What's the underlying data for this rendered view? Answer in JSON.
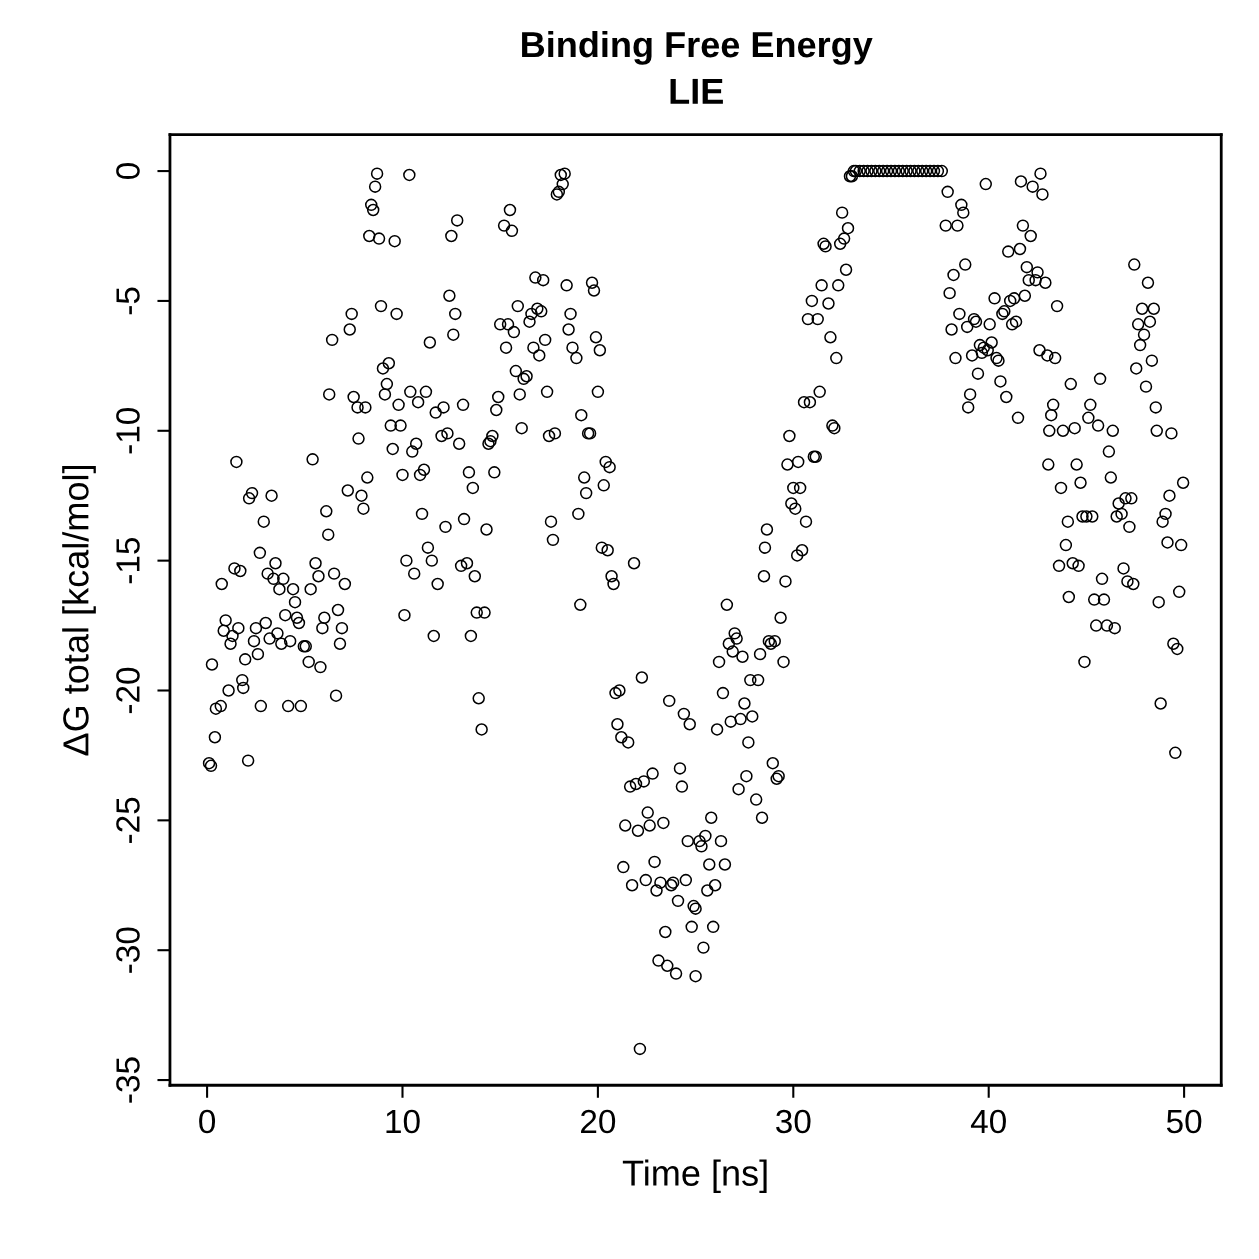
{
  "chart_data": {
    "type": "scatter",
    "title": "Binding Free Energy",
    "subtitle": "LIE",
    "xlabel": "Time [ns]",
    "ylabel": "ΔG total [kcal/mol]",
    "xlim": [
      -1.9,
      51.9
    ],
    "ylim": [
      -35.2,
      1.4
    ],
    "xticks": [
      0,
      10,
      20,
      30,
      40,
      50
    ],
    "yticks": [
      0,
      -5,
      -10,
      -15,
      -20,
      -25,
      -30,
      -35
    ],
    "marker": "circle",
    "grid": false,
    "legend": false,
    "series": [
      {
        "color": "#000000",
        "x": [
          0.1,
          0.2,
          0.25,
          0.4,
          0.45,
          0.7,
          0.75,
          0.85,
          0.95,
          1.1,
          1.2,
          1.3,
          1.4,
          1.5,
          1.6,
          1.7,
          1.8,
          1.85,
          1.95,
          2.1,
          2.15,
          2.3,
          2.4,
          2.5,
          2.6,
          2.7,
          2.75,
          2.9,
          3.0,
          3.1,
          3.2,
          3.3,
          3.4,
          3.5,
          3.6,
          3.7,
          3.8,
          3.9,
          4.0,
          4.15,
          4.25,
          4.4,
          4.5,
          4.6,
          4.7,
          4.8,
          4.95,
          5.05,
          5.2,
          5.3,
          5.4,
          5.55,
          5.7,
          5.8,
          5.9,
          6.0,
          6.1,
          6.2,
          6.25,
          6.4,
          6.5,
          6.6,
          6.7,
          6.8,
          6.9,
          7.05,
          7.2,
          7.3,
          7.4,
          7.5,
          7.7,
          7.75,
          7.9,
          8.0,
          8.1,
          8.2,
          8.3,
          8.4,
          8.5,
          8.6,
          8.7,
          8.8,
          8.9,
          9.0,
          9.1,
          9.2,
          9.3,
          9.4,
          9.5,
          9.6,
          9.7,
          9.8,
          9.9,
          10.0,
          10.1,
          10.2,
          10.35,
          10.4,
          10.5,
          10.6,
          10.7,
          10.8,
          10.9,
          11.0,
          11.1,
          11.2,
          11.3,
          11.4,
          11.5,
          11.6,
          11.7,
          11.8,
          12.0,
          12.1,
          12.2,
          12.3,
          12.4,
          12.5,
          12.6,
          12.7,
          12.8,
          12.9,
          13.0,
          13.1,
          13.15,
          13.3,
          13.4,
          13.5,
          13.6,
          13.7,
          13.8,
          13.9,
          14.05,
          14.2,
          14.3,
          14.4,
          14.5,
          14.6,
          14.7,
          14.8,
          14.9,
          15.0,
          15.2,
          15.3,
          15.4,
          15.5,
          15.6,
          15.7,
          15.8,
          15.9,
          16.0,
          16.1,
          16.2,
          16.35,
          16.5,
          16.6,
          16.7,
          16.8,
          16.9,
          17.0,
          17.1,
          17.2,
          17.3,
          17.4,
          17.5,
          17.6,
          17.7,
          17.8,
          17.9,
          18.0,
          18.1,
          18.2,
          18.3,
          18.4,
          18.5,
          18.6,
          18.7,
          18.9,
          19.0,
          19.1,
          19.15,
          19.3,
          19.4,
          19.5,
          19.6,
          19.7,
          19.8,
          19.9,
          20.0,
          20.1,
          20.2,
          20.3,
          20.4,
          20.5,
          20.6,
          20.7,
          20.8,
          20.9,
          21.0,
          21.1,
          21.2,
          21.3,
          21.4,
          21.55,
          21.65,
          21.75,
          21.85,
          21.95,
          22.05,
          22.15,
          22.25,
          22.35,
          22.45,
          22.55,
          22.65,
          22.8,
          22.9,
          23.0,
          23.1,
          23.2,
          23.35,
          23.45,
          23.55,
          23.65,
          23.75,
          23.85,
          24.0,
          24.1,
          24.2,
          24.3,
          24.4,
          24.5,
          24.6,
          24.7,
          24.8,
          24.9,
          25.0,
          25.0,
          25.2,
          25.3,
          25.4,
          25.5,
          25.6,
          25.7,
          25.8,
          25.9,
          26.0,
          26.1,
          26.2,
          26.3,
          26.4,
          26.5,
          26.6,
          26.7,
          26.8,
          26.9,
          27.0,
          27.1,
          27.2,
          27.3,
          27.4,
          27.5,
          27.6,
          27.7,
          27.8,
          27.9,
          28.1,
          28.2,
          28.3,
          28.4,
          28.5,
          28.55,
          28.65,
          28.75,
          28.85,
          28.95,
          29.05,
          29.15,
          29.25,
          29.35,
          29.5,
          29.6,
          29.7,
          29.8,
          29.9,
          30.0,
          30.1,
          30.2,
          30.25,
          30.35,
          30.45,
          30.55,
          30.65,
          30.75,
          30.85,
          30.95,
          31.05,
          31.15,
          31.25,
          31.35,
          31.45,
          31.55,
          31.65,
          31.8,
          31.9,
          32.0,
          32.1,
          32.2,
          32.3,
          32.4,
          32.5,
          32.6,
          32.7,
          32.8,
          32.9,
          33.0,
          33.1,
          33.2,
          33.4,
          33.6,
          33.8,
          34.0,
          34.2,
          34.4,
          34.6,
          34.8,
          35.0,
          35.2,
          35.4,
          35.6,
          35.8,
          36.0,
          36.2,
          36.4,
          36.6,
          36.8,
          37.0,
          37.2,
          37.4,
          37.6,
          37.8,
          37.9,
          38.0,
          38.1,
          38.2,
          38.3,
          38.4,
          38.5,
          38.6,
          38.7,
          38.8,
          38.9,
          38.95,
          39.05,
          39.15,
          39.25,
          39.35,
          39.45,
          39.55,
          39.65,
          39.75,
          39.85,
          39.95,
          40.05,
          40.15,
          40.3,
          40.4,
          40.5,
          40.6,
          40.7,
          40.8,
          40.9,
          41.0,
          41.1,
          41.2,
          41.3,
          41.4,
          41.5,
          41.6,
          41.65,
          41.75,
          41.85,
          41.95,
          42.05,
          42.15,
          42.25,
          42.4,
          42.5,
          42.6,
          42.65,
          42.75,
          42.9,
          43.0,
          43.05,
          43.1,
          43.2,
          43.3,
          43.4,
          43.5,
          43.6,
          43.7,
          43.8,
          43.95,
          44.05,
          44.1,
          44.2,
          44.3,
          44.4,
          44.5,
          44.6,
          44.7,
          44.8,
          44.9,
          45.0,
          45.1,
          45.2,
          45.3,
          45.4,
          45.5,
          45.6,
          45.7,
          45.8,
          45.9,
          46.05,
          46.15,
          46.25,
          46.35,
          46.45,
          46.55,
          46.65,
          46.8,
          46.9,
          47.0,
          47.1,
          47.2,
          47.3,
          47.4,
          47.45,
          47.55,
          47.65,
          47.75,
          47.85,
          47.95,
          48.05,
          48.15,
          48.25,
          48.35,
          48.45,
          48.55,
          48.6,
          48.7,
          48.8,
          48.9,
          49.05,
          49.15,
          49.25,
          49.35,
          49.45,
          49.55,
          49.65,
          49.75,
          49.85,
          49.95
        ],
        "values": [
          -22.8,
          -22.9,
          -19.0,
          -21.8,
          -20.7,
          -20.6,
          -15.9,
          -17.7,
          -17.3,
          -20.0,
          -18.2,
          -17.9,
          -15.3,
          -11.2,
          -17.6,
          -15.4,
          -19.6,
          -19.9,
          -18.8,
          -22.7,
          -12.6,
          -12.4,
          -18.1,
          -17.6,
          -18.6,
          -14.7,
          -20.6,
          -13.5,
          -17.4,
          -15.5,
          -18.0,
          -12.5,
          -15.7,
          -15.1,
          -17.8,
          -16.1,
          -18.2,
          -15.7,
          -17.1,
          -20.6,
          -18.1,
          -16.1,
          -16.6,
          -17.2,
          -17.4,
          -20.6,
          -18.3,
          -18.3,
          -18.9,
          -16.1,
          -11.1,
          -15.1,
          -15.6,
          -19.1,
          -17.6,
          -17.2,
          -13.1,
          -14.0,
          -8.6,
          -6.5,
          -15.5,
          -20.2,
          -16.9,
          -18.2,
          -17.6,
          -15.9,
          -12.3,
          -6.1,
          -5.5,
          -8.7,
          -9.1,
          -10.3,
          -12.5,
          -13.0,
          -9.1,
          -11.8,
          -2.5,
          -1.3,
          -1.5,
          -0.6,
          -0.1,
          -2.6,
          -5.2,
          -7.6,
          -8.6,
          -8.2,
          -7.4,
          -9.8,
          -10.7,
          -2.7,
          -5.5,
          -9.0,
          -9.8,
          -11.7,
          -17.1,
          -15.0,
          -0.15,
          -8.5,
          -10.8,
          -15.5,
          -10.5,
          -8.9,
          -11.7,
          -13.2,
          -11.5,
          -8.5,
          -14.5,
          -6.6,
          -15.0,
          -17.9,
          -9.3,
          -15.9,
          -10.2,
          -9.1,
          -13.7,
          -10.1,
          -4.8,
          -2.5,
          -6.3,
          -5.5,
          -1.9,
          -10.5,
          -15.2,
          -9.0,
          -13.4,
          -15.1,
          -11.6,
          -17.9,
          -12.2,
          -15.6,
          -17.0,
          -20.3,
          -21.5,
          -17.0,
          -13.8,
          -10.5,
          -10.4,
          -10.2,
          -11.6,
          -9.2,
          -8.7,
          -5.9,
          -2.1,
          -6.8,
          -5.9,
          -1.5,
          -2.3,
          -6.2,
          -7.7,
          -5.2,
          -8.6,
          -9.9,
          -8.0,
          -7.9,
          -5.8,
          -5.5,
          -6.8,
          -4.1,
          -5.3,
          -7.1,
          -5.4,
          -4.2,
          -6.5,
          -8.5,
          -10.2,
          -13.5,
          -14.2,
          -10.1,
          -0.9,
          -0.8,
          -0.15,
          -0.5,
          -0.1,
          -4.4,
          -6.1,
          -5.5,
          -6.8,
          -7.2,
          -13.2,
          -16.7,
          -9.4,
          -11.8,
          -12.4,
          -10.1,
          -10.1,
          -4.3,
          -4.6,
          -6.4,
          -8.5,
          -6.9,
          -14.5,
          -12.1,
          -11.2,
          -14.6,
          -11.4,
          -15.6,
          -15.9,
          -20.1,
          -21.3,
          -20.0,
          -21.8,
          -26.8,
          -25.2,
          -22.0,
          -23.7,
          -27.5,
          -15.1,
          -23.6,
          -25.4,
          -33.8,
          -19.5,
          -23.5,
          -27.3,
          -24.7,
          -25.2,
          -23.2,
          -26.6,
          -27.7,
          -30.4,
          -27.4,
          -25.1,
          -29.3,
          -30.6,
          -20.4,
          -27.5,
          -27.4,
          -30.9,
          -28.1,
          -23.0,
          -23.7,
          -20.9,
          -27.3,
          -25.8,
          -21.3,
          -29.1,
          -28.3,
          -28.4,
          -31.0,
          -25.8,
          -26.0,
          -29.9,
          -25.6,
          -27.7,
          -26.7,
          -24.9,
          -29.1,
          -27.5,
          -21.5,
          -18.9,
          -25.8,
          -20.1,
          -26.7,
          -16.7,
          -18.2,
          -21.2,
          -18.5,
          -17.8,
          -18.0,
          -23.8,
          -21.1,
          -18.7,
          -20.5,
          -23.3,
          -22.0,
          -19.6,
          -21.0,
          -24.2,
          -19.6,
          -18.6,
          -24.9,
          -15.6,
          -14.5,
          -13.8,
          -18.1,
          -18.2,
          -22.8,
          -18.1,
          -23.4,
          -23.3,
          -17.2,
          -18.9,
          -15.8,
          -11.3,
          -10.2,
          -12.8,
          -12.2,
          -13.0,
          -14.8,
          -11.2,
          -12.2,
          -14.6,
          -8.9,
          -13.5,
          -5.7,
          -8.9,
          -5.0,
          -11.0,
          -11.0,
          -5.7,
          -8.5,
          -4.4,
          -2.8,
          -2.9,
          -5.1,
          -6.4,
          -9.8,
          -9.9,
          -7.2,
          -4.4,
          -2.8,
          -1.6,
          -2.6,
          -3.8,
          -2.2,
          -0.2,
          -0.2,
          0,
          0,
          0,
          0,
          0,
          0,
          0,
          0,
          0,
          0,
          0,
          0,
          0,
          0,
          0,
          0,
          0,
          0,
          0,
          0,
          0,
          0,
          0,
          0,
          -2.1,
          -0.8,
          -4.7,
          -6.1,
          -4.0,
          -7.2,
          -2.1,
          -5.5,
          -1.3,
          -1.6,
          -3.6,
          -6.0,
          -9.1,
          -8.6,
          -7.1,
          -5.7,
          -5.8,
          -7.8,
          -6.7,
          -7.0,
          -6.8,
          -0.5,
          -6.9,
          -5.9,
          -6.6,
          -4.9,
          -7.2,
          -7.3,
          -8.1,
          -5.5,
          -5.4,
          -8.7,
          -3.1,
          -5.0,
          -5.9,
          -4.9,
          -5.8,
          -9.5,
          -3.0,
          -0.4,
          -2.1,
          -4.8,
          -3.7,
          -4.2,
          -2.5,
          -0.6,
          -4.2,
          -3.9,
          -6.9,
          -0.1,
          -0.9,
          -4.3,
          -7.1,
          -11.3,
          -10.0,
          -9.4,
          -9.0,
          -7.2,
          -5.2,
          -15.2,
          -12.2,
          -10.0,
          -14.4,
          -13.5,
          -16.4,
          -8.2,
          -15.1,
          -9.9,
          -11.3,
          -15.2,
          -12.0,
          -13.3,
          -18.9,
          -13.3,
          -9.5,
          -9.0,
          -13.3,
          -16.5,
          -17.5,
          -9.8,
          -8.0,
          -15.7,
          -16.5,
          -17.5,
          -10.8,
          -11.8,
          -10.0,
          -17.6,
          -13.3,
          -12.8,
          -13.2,
          -15.3,
          -12.6,
          -15.8,
          -13.7,
          -12.6,
          -15.9,
          -3.6,
          -7.6,
          -5.9,
          -6.7,
          -5.3,
          -6.3,
          -8.3,
          -4.3,
          -5.8,
          -7.3,
          -5.3,
          -9.1,
          -10.0,
          -16.6,
          -20.5,
          -13.5,
          -13.2,
          -14.3,
          -12.5,
          -10.1,
          -18.2,
          -22.4,
          -18.4,
          -16.2,
          -14.4,
          -12.0
        ]
      }
    ]
  }
}
